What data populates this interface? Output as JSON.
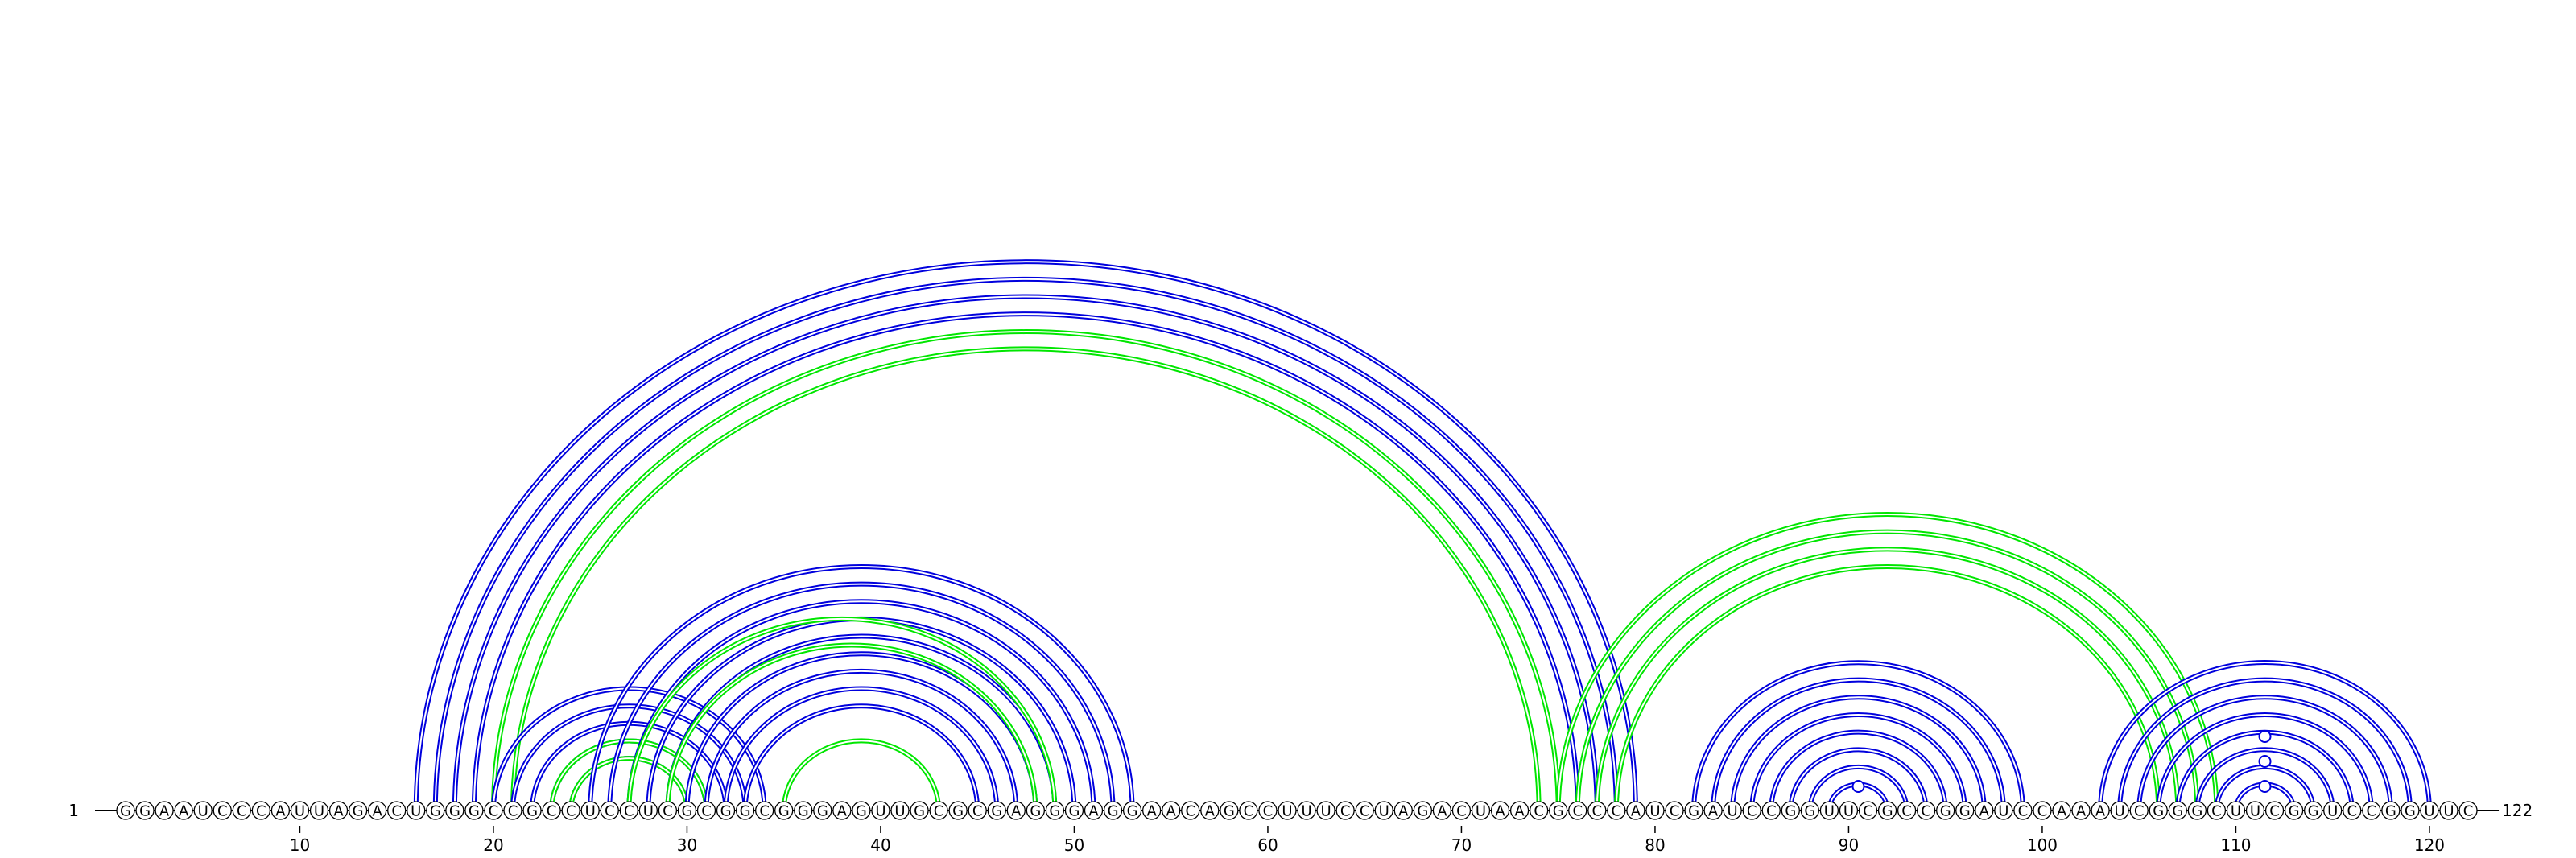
{
  "diagram": {
    "type": "rna-arc-diagram",
    "sequence": "GGAAUCCCAUUAGACUGGGCCGCCUCCUCGCGGCGGGAGUUGCGCGAGGGAGGAACAGCCUUUCCUAGACUAACGCCCAUCGAUCCGGUUCGCCGGAUCCAAAUCGGGCUUCGGUCCGGUUC",
    "start_label": "1",
    "end_label": "122",
    "tick_labels": [
      "10",
      "20",
      "30",
      "40",
      "50",
      "60",
      "70",
      "80",
      "90",
      "100",
      "110",
      "120"
    ],
    "colors": {
      "arc_primary": "#0000dd",
      "arc_secondary": "#00e600",
      "nucleotide_fill": "#ffffff",
      "nucleotide_stroke": "#000000",
      "backbone": "#000000"
    },
    "arc_groups": [
      {
        "color": "arc_primary",
        "pairs": [
          [
            16,
            79
          ],
          [
            17,
            78
          ],
          [
            18,
            77
          ],
          [
            19,
            76
          ]
        ]
      },
      {
        "color": "arc_secondary",
        "pairs": [
          [
            20,
            75
          ],
          [
            21,
            74
          ]
        ]
      },
      {
        "color": "arc_primary",
        "pairs": [
          [
            20,
            34
          ],
          [
            21,
            33
          ],
          [
            22,
            32
          ],
          [
            23,
            31
          ],
          [
            24,
            30
          ]
        ]
      },
      {
        "color": "arc_secondary",
        "pairs": [
          [
            23,
            31
          ],
          [
            24,
            30
          ]
        ]
      },
      {
        "color": "arc_primary",
        "pairs": [
          [
            25,
            53
          ],
          [
            26,
            52
          ],
          [
            27,
            51
          ],
          [
            28,
            50
          ],
          [
            29,
            49
          ],
          [
            30,
            48
          ],
          [
            31,
            47
          ],
          [
            32,
            46
          ],
          [
            33,
            45
          ]
        ]
      },
      {
        "color": "arc_secondary",
        "pairs": [
          [
            27,
            49
          ],
          [
            29,
            48
          ]
        ]
      },
      {
        "color": "arc_secondary",
        "pairs": [
          [
            35,
            43
          ]
        ]
      },
      {
        "color": "arc_secondary",
        "pairs": [
          [
            75,
            109
          ],
          [
            76,
            108
          ],
          [
            77,
            107
          ],
          [
            78,
            106
          ]
        ]
      },
      {
        "color": "arc_primary",
        "pairs": [
          [
            82,
            99
          ],
          [
            83,
            98
          ],
          [
            84,
            97
          ],
          [
            85,
            96
          ],
          [
            86,
            95
          ],
          [
            87,
            94
          ],
          [
            88,
            93
          ],
          [
            89,
            92
          ]
        ]
      },
      {
        "color": "arc_primary",
        "pairs": [
          [
            103,
            120
          ],
          [
            104,
            119
          ],
          [
            105,
            118
          ],
          [
            106,
            117
          ],
          [
            107,
            116
          ],
          [
            108,
            115
          ],
          [
            109,
            114
          ],
          [
            110,
            113
          ]
        ]
      }
    ],
    "unpaired_markers": [
      {
        "color": "arc_primary",
        "position": 90.5,
        "level": 1
      },
      {
        "color": "arc_primary",
        "position": 111.5,
        "level": 1
      },
      {
        "color": "arc_primary",
        "position": 111.5,
        "level": 2
      },
      {
        "color": "arc_primary",
        "position": 111.5,
        "level": 3
      }
    ]
  }
}
